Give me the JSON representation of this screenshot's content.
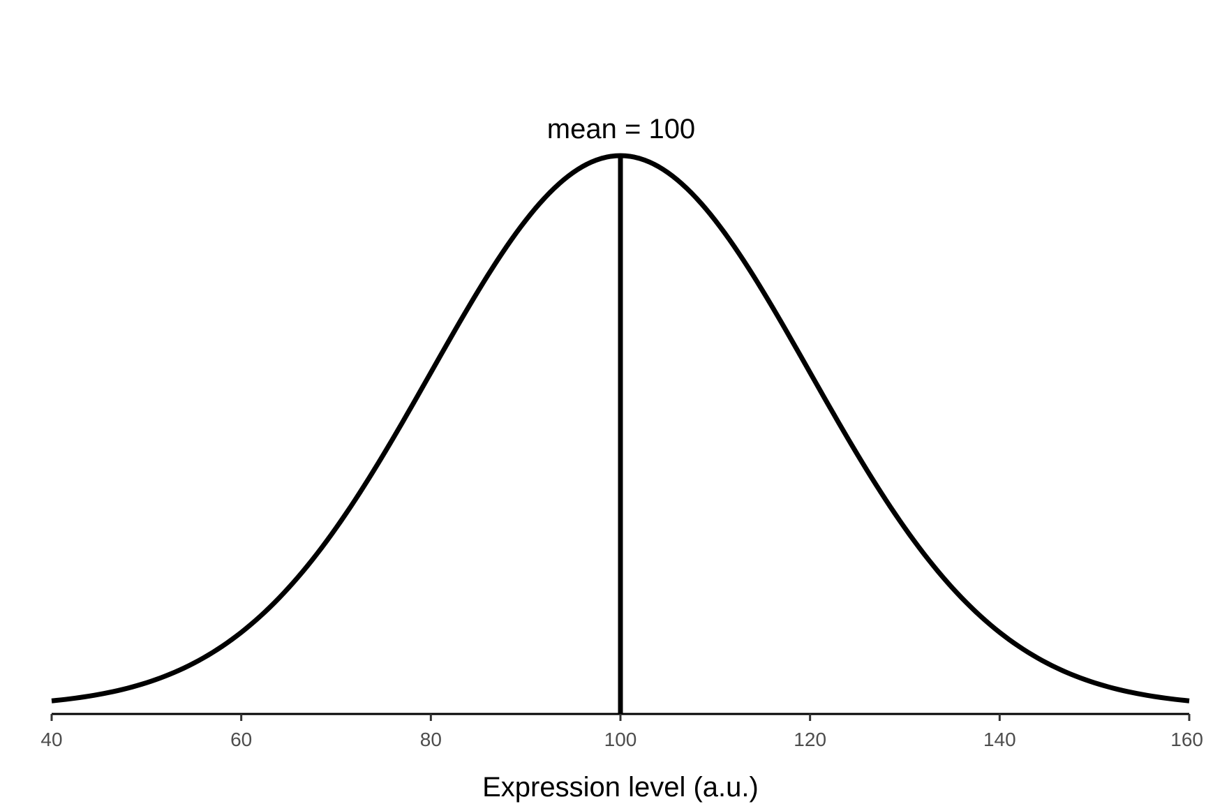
{
  "chart_data": {
    "type": "line",
    "title": "",
    "xlabel": "Expression level (a.u.)",
    "ylabel": "",
    "xlim": [
      40,
      160
    ],
    "x_ticks": [
      40,
      60,
      80,
      100,
      120,
      140,
      160
    ],
    "x_tick_labels": [
      "40",
      "60",
      "80",
      "100",
      "120",
      "140",
      "160"
    ],
    "y_axis_visible": false,
    "grid": false,
    "legend": "none",
    "series": [
      {
        "distribution": "normal",
        "mean": 100,
        "sd": 20,
        "color": "#000000"
      }
    ],
    "mean_line": {
      "x": 100,
      "color": "#000000"
    },
    "annotations": [
      {
        "text": "mean = 100",
        "x": 100
      }
    ]
  }
}
